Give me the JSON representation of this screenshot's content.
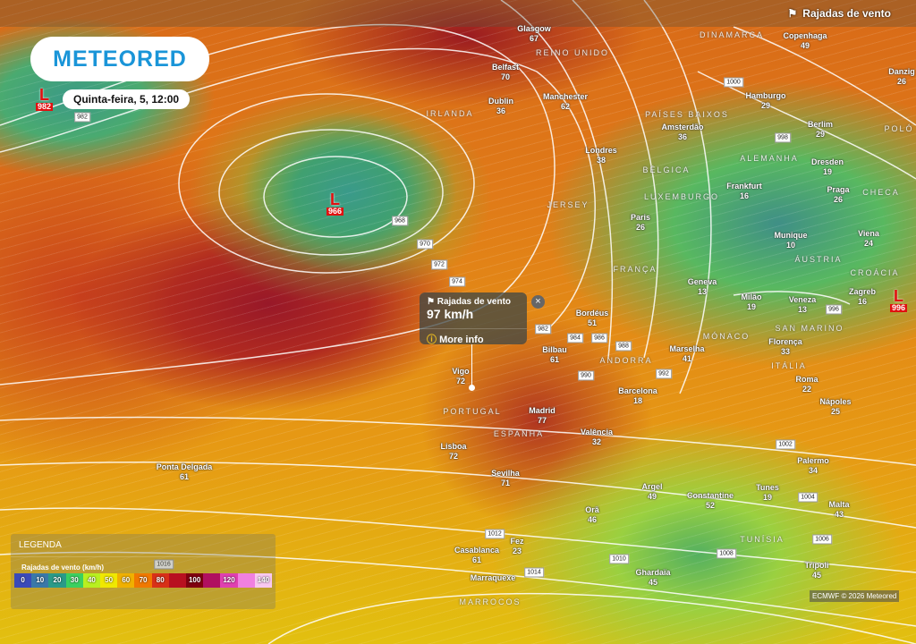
{
  "header": {
    "layer_label": "Rajadas de vento",
    "layer_icon": "windsock-icon"
  },
  "brand": {
    "logo": "METEORED",
    "color": "#1a95d8"
  },
  "date_label": "Quinta-feira, 5, 12:00",
  "lows": [
    {
      "symbol": "L",
      "pressure": "982"
    },
    {
      "symbol": "L",
      "pressure": "966"
    },
    {
      "symbol": "L",
      "pressure": "996"
    }
  ],
  "popup": {
    "title": "Rajadas de vento",
    "value": "97 km/h",
    "more": "More info",
    "close": "×"
  },
  "cities": [
    {
      "name": "Glasgow",
      "v": "67"
    },
    {
      "name": "Belfast",
      "v": "70"
    },
    {
      "name": "Dublin",
      "v": "36"
    },
    {
      "name": "Manchester",
      "v": "62"
    },
    {
      "name": "Londres",
      "v": "38"
    },
    {
      "name": "Amsterdão",
      "v": "36"
    },
    {
      "name": "Hamburgo",
      "v": "29"
    },
    {
      "name": "Copenhaga",
      "v": "49"
    },
    {
      "name": "Danzig",
      "v": "26"
    },
    {
      "name": "Berlim",
      "v": "29"
    },
    {
      "name": "Dresden",
      "v": "19"
    },
    {
      "name": "Praga",
      "v": "26"
    },
    {
      "name": "Frankfurt",
      "v": "16"
    },
    {
      "name": "Paris",
      "v": "26"
    },
    {
      "name": "Munique",
      "v": "10"
    },
    {
      "name": "Viena",
      "v": "24"
    },
    {
      "name": "Geneva",
      "v": "13"
    },
    {
      "name": "Milão",
      "v": "19"
    },
    {
      "name": "Veneza",
      "v": "13"
    },
    {
      "name": "Zagreb",
      "v": "16"
    },
    {
      "name": "Bordéus",
      "v": "51"
    },
    {
      "name": "Bilbau",
      "v": "61"
    },
    {
      "name": "Marselha",
      "v": "41"
    },
    {
      "name": "Florença",
      "v": "33"
    },
    {
      "name": "Roma",
      "v": "22"
    },
    {
      "name": "Nápoles",
      "v": "25"
    },
    {
      "name": "Barcelona",
      "v": "18"
    },
    {
      "name": "Vigo",
      "v": "72"
    },
    {
      "name": "Madrid",
      "v": "77"
    },
    {
      "name": "Valência",
      "v": "32"
    },
    {
      "name": "Lisboa",
      "v": "72"
    },
    {
      "name": "Sevilha",
      "v": "71"
    },
    {
      "name": "Ponta Delgada",
      "v": "61"
    },
    {
      "name": "Argel",
      "v": "49"
    },
    {
      "name": "Constantine",
      "v": "52"
    },
    {
      "name": "Tunes",
      "v": "19"
    },
    {
      "name": "Orã",
      "v": "46"
    },
    {
      "name": "Malta",
      "v": "43"
    },
    {
      "name": "Palermo",
      "v": "34"
    },
    {
      "name": "Casablanca",
      "v": "61"
    },
    {
      "name": "Fez",
      "v": "23"
    },
    {
      "name": "Marraquexe",
      "v": ""
    },
    {
      "name": "Ghardaïa",
      "v": "45"
    },
    {
      "name": "Tripoli",
      "v": "45"
    }
  ],
  "countries": [
    "REINO UNIDO",
    "IRLANDA",
    "PAÍSES BAIXOS",
    "ALEMANHA",
    "BÉLGICA",
    "LUXEMBURGO",
    "DINAMARCA",
    "POLÓ",
    "CHECA",
    "JERSEY",
    "FRANÇA",
    "ÁUSTRIA",
    "MÓNACO",
    "SAN MARINO",
    "ITÁLIA",
    "ANDORRA",
    "PORTUGAL",
    "ESPANHA",
    "MARROCOS",
    "TUNÍSIA",
    "CROÁCIA"
  ],
  "isobars": [
    "982",
    "968",
    "970",
    "972",
    "974",
    "1000",
    "998",
    "996",
    "986",
    "988",
    "990",
    "992",
    "984",
    "982",
    "1002",
    "1004",
    "1006",
    "1008",
    "1010",
    "1012",
    "1014",
    "1016"
  ],
  "legend": {
    "title": "LEGENDA",
    "subtitle": "Rajadas de vento (km/h)",
    "stops": [
      {
        "label": "0",
        "color": "#3a4ab8"
      },
      {
        "label": "10",
        "color": "#3a78a8"
      },
      {
        "label": "20",
        "color": "#2a9a88"
      },
      {
        "label": "30",
        "color": "#3ad060"
      },
      {
        "label": "40",
        "color": "#b8f020"
      },
      {
        "label": "50",
        "color": "#f0e800"
      },
      {
        "label": "60",
        "color": "#f0b000"
      },
      {
        "label": "70",
        "color": "#f07800"
      },
      {
        "label": "80",
        "color": "#d83018"
      },
      {
        "label": "",
        "color": "#b81020"
      },
      {
        "label": "100",
        "color": "#800010"
      },
      {
        "label": "",
        "color": "#b01060"
      },
      {
        "label": "120",
        "color": "#e040b0"
      },
      {
        "label": "",
        "color": "#f080e0"
      },
      {
        "label": "140",
        "color": "#f8c8f0"
      }
    ]
  },
  "attribution": "ECMWF © 2026 Meteored"
}
